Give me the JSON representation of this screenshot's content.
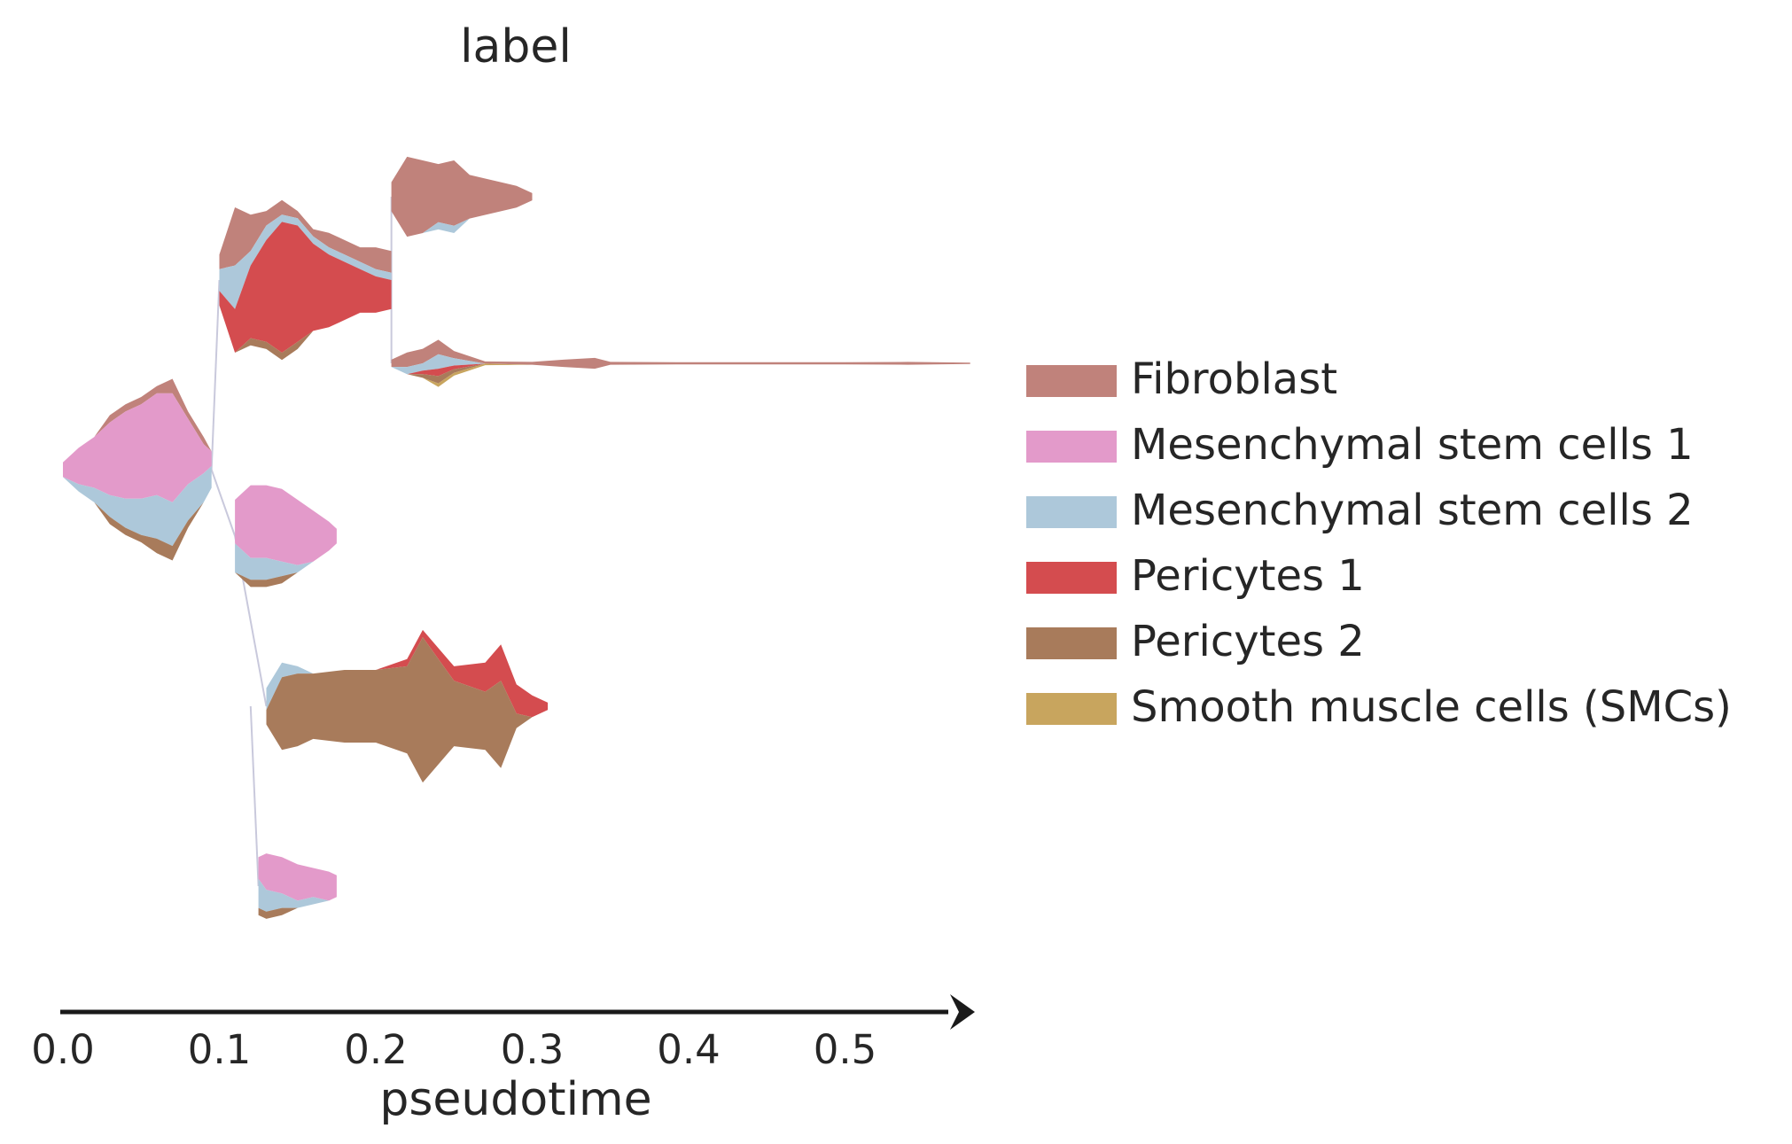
{
  "chart_data": {
    "type": "stream",
    "title": "label",
    "xlabel": "pseudotime",
    "xlim": [
      0.0,
      0.58
    ],
    "xticks": [
      0.0,
      0.1,
      0.2,
      0.3,
      0.4,
      0.5
    ],
    "xtick_labels": [
      "0.0",
      "0.1",
      "0.2",
      "0.3",
      "0.4",
      "0.5"
    ],
    "legend_position": "center-right",
    "categories": [
      {
        "name": "Fibroblast",
        "color": "#c0827b"
      },
      {
        "name": "Mesenchymal stem cells 1",
        "color": "#e39aca"
      },
      {
        "name": "Mesenchymal stem cells 2",
        "color": "#adc8da"
      },
      {
        "name": "Pericytes 1",
        "color": "#d44c4f"
      },
      {
        "name": "Pericytes 2",
        "color": "#a87b5b"
      },
      {
        "name": "Smooth muscle cells (SMCs)",
        "color": "#c8a55e"
      }
    ],
    "branches": [
      {
        "id": "root",
        "x": [
          0.0,
          0.01,
          0.02,
          0.03,
          0.04,
          0.05,
          0.06,
          0.07,
          0.08,
          0.09,
          0.095
        ],
        "series": {
          "Fibroblast": [
            0.0,
            0.0,
            0.0,
            0.01,
            0.01,
            0.01,
            0.01,
            0.02,
            0.01,
            0.01,
            0.0
          ],
          "Mesenchymal stem cells 1": [
            0.02,
            0.05,
            0.07,
            0.1,
            0.12,
            0.13,
            0.14,
            0.15,
            0.09,
            0.04,
            0.02
          ],
          "Mesenchymal stem cells 2": [
            0.0,
            0.01,
            0.02,
            0.03,
            0.04,
            0.05,
            0.06,
            0.06,
            0.05,
            0.04,
            0.03
          ],
          "Pericytes 1": [
            0.0,
            0.0,
            0.0,
            0.0,
            0.0,
            0.0,
            0.0,
            0.0,
            0.0,
            0.0,
            0.0
          ],
          "Pericytes 2": [
            0.0,
            0.0,
            0.0,
            0.01,
            0.01,
            0.01,
            0.02,
            0.02,
            0.01,
            0.0,
            0.0
          ],
          "Smooth muscle cells (SMCs)": [
            0.0,
            0.0,
            0.0,
            0.0,
            0.0,
            0.0,
            0.0,
            0.0,
            0.0,
            0.0,
            0.0
          ]
        }
      },
      {
        "id": "upper",
        "x": [
          0.1,
          0.11,
          0.12,
          0.13,
          0.14,
          0.15,
          0.16,
          0.17,
          0.18,
          0.19,
          0.2,
          0.21
        ],
        "series": {
          "Fibroblast": [
            0.02,
            0.08,
            0.05,
            0.02,
            0.02,
            0.01,
            0.01,
            0.02,
            0.02,
            0.02,
            0.03,
            0.03
          ],
          "Mesenchymal stem cells 1": [
            0.0,
            0.0,
            0.0,
            0.0,
            0.0,
            0.0,
            0.0,
            0.0,
            0.0,
            0.0,
            0.0,
            0.0
          ],
          "Mesenchymal stem cells 2": [
            0.03,
            0.06,
            0.02,
            0.02,
            0.01,
            0.01,
            0.01,
            0.01,
            0.01,
            0.01,
            0.01,
            0.01
          ],
          "Pericytes 1": [
            0.02,
            0.06,
            0.1,
            0.14,
            0.18,
            0.16,
            0.12,
            0.1,
            0.08,
            0.06,
            0.05,
            0.04
          ],
          "Pericytes 2": [
            0.0,
            0.0,
            0.01,
            0.01,
            0.01,
            0.01,
            0.0,
            0.0,
            0.0,
            0.0,
            0.0,
            0.0
          ],
          "Smooth muscle cells (SMCs)": [
            0.0,
            0.0,
            0.0,
            0.0,
            0.0,
            0.0,
            0.0,
            0.0,
            0.0,
            0.0,
            0.0,
            0.0
          ]
        }
      },
      {
        "id": "upper-fibroblast",
        "x": [
          0.21,
          0.22,
          0.23,
          0.24,
          0.25,
          0.26,
          0.27,
          0.28,
          0.29,
          0.3
        ],
        "series": {
          "Fibroblast": [
            0.04,
            0.11,
            0.1,
            0.08,
            0.09,
            0.06,
            0.05,
            0.04,
            0.03,
            0.01
          ],
          "Mesenchymal stem cells 1": [
            0.0,
            0.0,
            0.0,
            0.0,
            0.0,
            0.0,
            0.0,
            0.0,
            0.0,
            0.0
          ],
          "Mesenchymal stem cells 2": [
            0.0,
            0.0,
            0.0,
            0.01,
            0.01,
            0.0,
            0.0,
            0.0,
            0.0,
            0.0
          ],
          "Pericytes 1": [
            0.0,
            0.0,
            0.0,
            0.0,
            0.0,
            0.0,
            0.0,
            0.0,
            0.0,
            0.0
          ],
          "Pericytes 2": [
            0.0,
            0.0,
            0.0,
            0.0,
            0.0,
            0.0,
            0.0,
            0.0,
            0.0,
            0.0
          ],
          "Smooth muscle cells (SMCs)": [
            0.0,
            0.0,
            0.0,
            0.0,
            0.0,
            0.0,
            0.0,
            0.0,
            0.0,
            0.0
          ]
        }
      },
      {
        "id": "upper-long",
        "x": [
          0.21,
          0.22,
          0.23,
          0.24,
          0.25,
          0.27,
          0.3,
          0.32,
          0.34,
          0.35,
          0.4,
          0.45,
          0.5,
          0.54,
          0.58
        ],
        "series": {
          "Fibroblast": [
            0.01,
            0.02,
            0.02,
            0.02,
            0.01,
            0.003,
            0.004,
            0.01,
            0.015,
            0.004,
            0.003,
            0.003,
            0.003,
            0.004,
            0.002
          ],
          "Mesenchymal stem cells 1": [
            0.0,
            0.0,
            0.0,
            0.0,
            0.0,
            0.0,
            0.0,
            0.0,
            0.0,
            0.0,
            0.0,
            0.0,
            0.0,
            0.0,
            0.0
          ],
          "Mesenchymal stem cells 2": [
            0.0,
            0.01,
            0.01,
            0.02,
            0.01,
            0.0,
            0.0,
            0.0,
            0.0,
            0.0,
            0.0,
            0.0,
            0.0,
            0.0,
            0.0
          ],
          "Pericytes 1": [
            0.0,
            0.0,
            0.005,
            0.01,
            0.005,
            0.0,
            0.0,
            0.0,
            0.0,
            0.0,
            0.0,
            0.0,
            0.0,
            0.0,
            0.0
          ],
          "Pericytes 2": [
            0.0,
            0.0,
            0.005,
            0.01,
            0.005,
            0.0,
            0.0,
            0.0,
            0.0,
            0.0,
            0.0,
            0.0,
            0.0,
            0.0,
            0.0
          ],
          "Smooth muscle cells (SMCs)": [
            0.0,
            0.0,
            0.0,
            0.005,
            0.004,
            0.002,
            0.0,
            0.0,
            0.0,
            0.0,
            0.0,
            0.0,
            0.0,
            0.0,
            0.0
          ]
        }
      },
      {
        "id": "lower-msc1",
        "x": [
          0.11,
          0.12,
          0.13,
          0.14,
          0.15,
          0.16,
          0.17,
          0.175
        ],
        "series": {
          "Fibroblast": [
            0.0,
            0.0,
            0.0,
            0.0,
            0.0,
            0.0,
            0.0,
            0.0
          ],
          "Mesenchymal stem cells 1": [
            0.06,
            0.1,
            0.1,
            0.1,
            0.09,
            0.07,
            0.04,
            0.02
          ],
          "Mesenchymal stem cells 2": [
            0.04,
            0.03,
            0.03,
            0.02,
            0.01,
            0.0,
            0.0,
            0.0
          ],
          "Pericytes 1": [
            0.0,
            0.0,
            0.0,
            0.0,
            0.0,
            0.0,
            0.0,
            0.0
          ],
          "Pericytes 2": [
            0.0,
            0.01,
            0.01,
            0.01,
            0.0,
            0.0,
            0.0,
            0.0
          ],
          "Smooth muscle cells (SMCs)": [
            0.0,
            0.0,
            0.0,
            0.0,
            0.0,
            0.0,
            0.0,
            0.0
          ]
        }
      },
      {
        "id": "lower-pericytes",
        "x": [
          0.13,
          0.14,
          0.15,
          0.16,
          0.18,
          0.2,
          0.22,
          0.23,
          0.25,
          0.27,
          0.28,
          0.29,
          0.3,
          0.31
        ],
        "series": {
          "Fibroblast": [
            0.0,
            0.0,
            0.0,
            0.0,
            0.0,
            0.0,
            0.0,
            0.0,
            0.0,
            0.0,
            0.0,
            0.0,
            0.0,
            0.0
          ],
          "Mesenchymal stem cells 1": [
            0.0,
            0.0,
            0.0,
            0.0,
            0.0,
            0.0,
            0.0,
            0.0,
            0.0,
            0.0,
            0.0,
            0.0,
            0.0,
            0.0
          ],
          "Mesenchymal stem cells 2": [
            0.03,
            0.02,
            0.01,
            0.0,
            0.0,
            0.0,
            0.0,
            0.0,
            0.0,
            0.0,
            0.0,
            0.0,
            0.0,
            0.0
          ],
          "Pericytes 1": [
            0.0,
            0.0,
            0.0,
            0.0,
            0.0,
            0.0,
            0.01,
            0.01,
            0.02,
            0.04,
            0.05,
            0.04,
            0.03,
            0.01
          ],
          "Pericytes 2": [
            0.02,
            0.1,
            0.1,
            0.09,
            0.1,
            0.1,
            0.12,
            0.2,
            0.09,
            0.08,
            0.12,
            0.02,
            0.0,
            0.0
          ],
          "Smooth muscle cells (SMCs)": [
            0.0,
            0.0,
            0.0,
            0.0,
            0.0,
            0.0,
            0.0,
            0.0,
            0.0,
            0.0,
            0.0,
            0.0,
            0.0,
            0.0
          ]
        }
      },
      {
        "id": "lower-msc1-b",
        "x": [
          0.125,
          0.13,
          0.14,
          0.15,
          0.16,
          0.17,
          0.175
        ],
        "series": {
          "Fibroblast": [
            0.0,
            0.0,
            0.0,
            0.0,
            0.0,
            0.0,
            0.0
          ],
          "Mesenchymal stem cells 1": [
            0.03,
            0.05,
            0.05,
            0.05,
            0.04,
            0.04,
            0.03
          ],
          "Mesenchymal stem cells 2": [
            0.04,
            0.03,
            0.02,
            0.01,
            0.01,
            0.0,
            0.0
          ],
          "Pericytes 1": [
            0.0,
            0.0,
            0.0,
            0.0,
            0.0,
            0.0,
            0.0
          ],
          "Pericytes 2": [
            0.01,
            0.01,
            0.01,
            0.0,
            0.0,
            0.0,
            0.0
          ],
          "Smooth muscle cells (SMCs)": [
            0.0,
            0.0,
            0.0,
            0.0,
            0.0,
            0.0,
            0.0
          ]
        }
      }
    ]
  }
}
